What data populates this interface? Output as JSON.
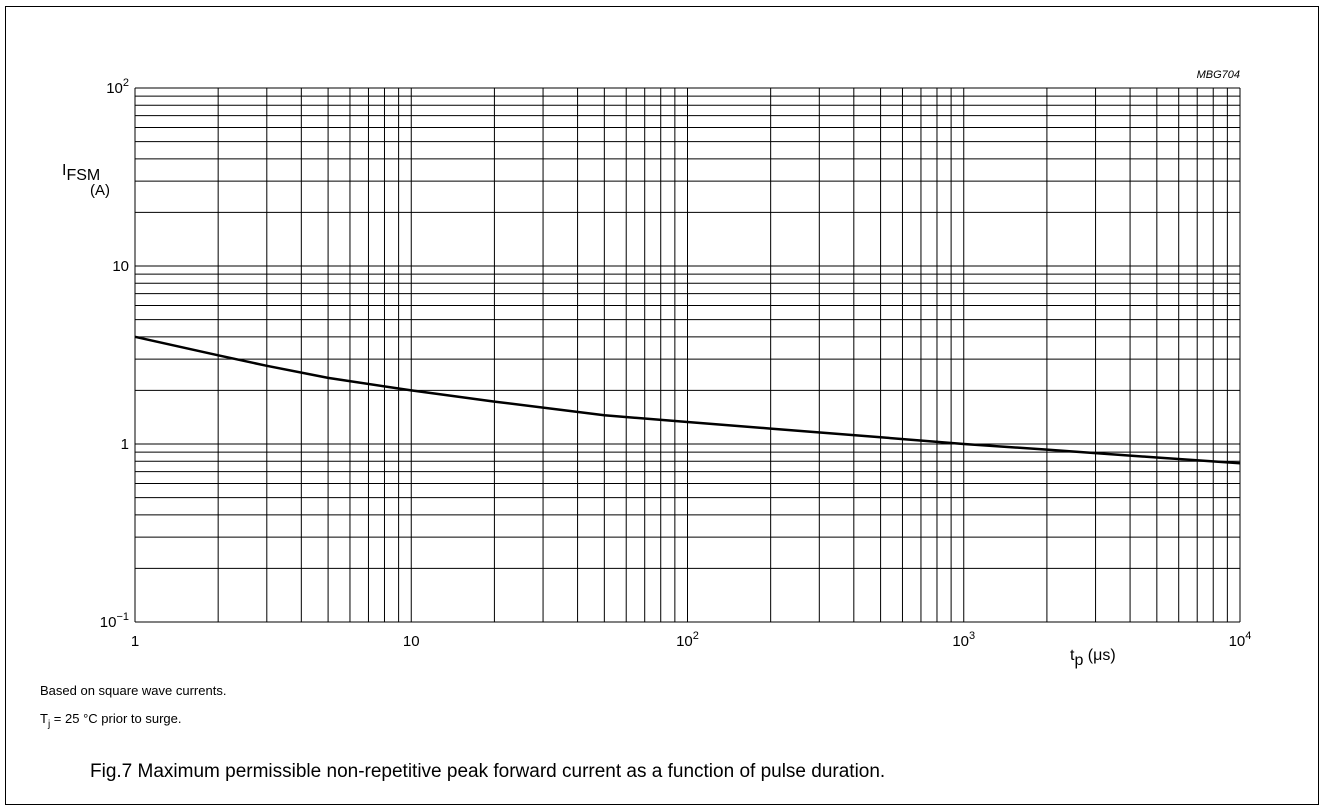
{
  "chart_data": {
    "type": "line",
    "code": "MBG704",
    "x_scale": "log",
    "y_scale": "log",
    "xlim": [
      1,
      10000
    ],
    "ylim": [
      0.1,
      100
    ],
    "grid": true,
    "x_ticks": [
      {
        "base": "1",
        "exp": ""
      },
      {
        "base": "10",
        "exp": ""
      },
      {
        "base": "10",
        "exp": "2"
      },
      {
        "base": "10",
        "exp": "3"
      },
      {
        "base": "10",
        "exp": "4"
      }
    ],
    "y_ticks": [
      {
        "base": "10",
        "exp": "−1"
      },
      {
        "base": "1",
        "exp": ""
      },
      {
        "base": "10",
        "exp": ""
      },
      {
        "base": "10",
        "exp": "2"
      }
    ],
    "ylabel": {
      "main": "I",
      "sub": "FSM",
      "unit": "(A)"
    },
    "xlabel": {
      "main": "t",
      "sub": "p",
      "unit": "(μs)"
    },
    "series": [
      {
        "x": [
          1,
          2,
          3,
          5,
          10,
          20,
          50,
          100,
          200,
          500,
          1000,
          2000,
          5000,
          10000
        ],
        "y": [
          4.0,
          3.15,
          2.75,
          2.35,
          2.0,
          1.73,
          1.45,
          1.33,
          1.22,
          1.09,
          1.0,
          0.93,
          0.84,
          0.78
        ]
      }
    ]
  },
  "notes": {
    "line1": "Based on square wave currents.",
    "line2_main": "T",
    "line2_sub": "j",
    "line2_rest": " = 25 °C prior to surge."
  },
  "caption": "Fig.7  Maximum permissible non-repetitive peak forward current as a function of pulse duration."
}
